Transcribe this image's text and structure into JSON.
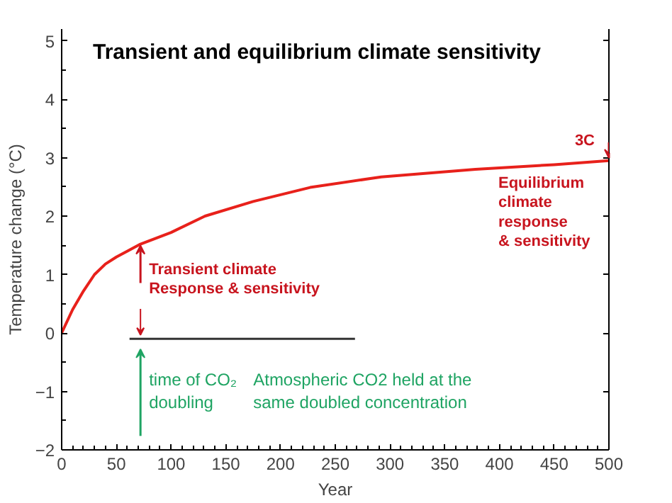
{
  "chart_data": {
    "type": "line",
    "title": "Transient and equilibrium climate sensitivity",
    "xlabel": "Year",
    "ylabel": "Temperature change (°C)",
    "series": [
      {
        "color": "#e8211b",
        "x": [
          0,
          10,
          20,
          30,
          40,
          50,
          60,
          72,
          100,
          131,
          175,
          227,
          292,
          378,
          450,
          500
        ],
        "values": [
          0,
          0.4,
          0.72,
          1.0,
          1.18,
          1.3,
          1.4,
          1.52,
          1.72,
          2.0,
          2.25,
          2.49,
          2.67,
          2.8,
          2.88,
          2.95
        ]
      },
      {
        "color": "#333333",
        "x": [
          62,
          268
        ],
        "values": [
          -0.1,
          -0.1
        ]
      }
    ],
    "annotations": [
      {
        "text": "3C",
        "x": 500,
        "y": 2.95
      },
      {
        "text": "Equilibrium\nclimate\nresponse\n& sensitivity",
        "x": 500,
        "y": 2.95
      },
      {
        "text": "Transient climate\nResponse & sensitivity",
        "x": 72,
        "y": 1.52
      },
      {
        "text": "time of CO₂\ndoubling",
        "x": 72,
        "y": -0.1
      },
      {
        "text": "Atmospheric CO2 held at the\nsame doubled concentration",
        "x": 175,
        "y": -0.1
      }
    ],
    "xlim": [
      0,
      500
    ],
    "ylim": [
      -2,
      5.2
    ],
    "xticks": [
      0,
      50,
      100,
      150,
      200,
      250,
      300,
      350,
      400,
      450,
      500
    ],
    "yticks": [
      -2,
      -1,
      0,
      1,
      2,
      3,
      4,
      5
    ],
    "grid": false,
    "line_style": "solid",
    "marker": "none"
  }
}
